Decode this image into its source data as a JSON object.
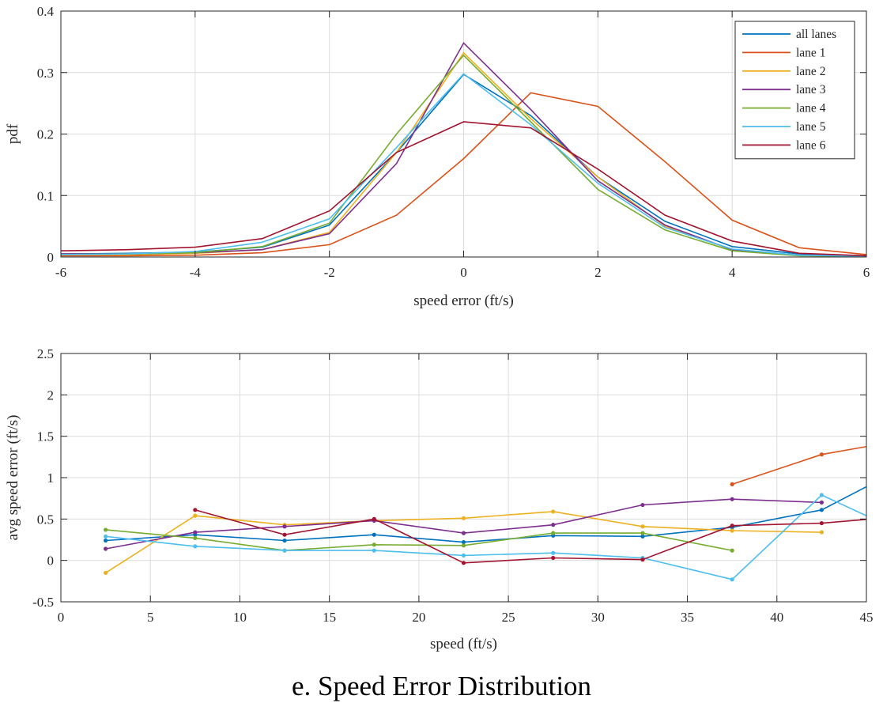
{
  "caption": "e. Speed Error Distribution",
  "colors": {
    "all lanes": "#0072BD",
    "lane 1": "#D95319",
    "lane 2": "#EDB120",
    "lane 3": "#7E2F8E",
    "lane 4": "#77AC30",
    "lane 5": "#4DBEEE",
    "lane 6": "#A2142F"
  },
  "chart_data": [
    {
      "type": "line",
      "xlabel": "speed error (ft/s)",
      "ylabel": "pdf",
      "xlim": [
        -6,
        6
      ],
      "ylim": [
        0,
        0.4
      ],
      "xticks": [
        "-6",
        "-4",
        "-2",
        "0",
        "2",
        "4",
        "6"
      ],
      "yticks": [
        "0",
        "0.1",
        "0.2",
        "0.3",
        "0.4"
      ],
      "grid": true,
      "legend": "top-right",
      "x": [
        -6,
        -5,
        -4,
        -3,
        -2,
        -1,
        0,
        1,
        2,
        3,
        4,
        5,
        6
      ],
      "series": [
        {
          "name": "all lanes",
          "values": [
            0.005,
            0.006,
            0.008,
            0.016,
            0.052,
            0.17,
            0.297,
            0.23,
            0.13,
            0.058,
            0.017,
            0.005,
            0.002
          ]
        },
        {
          "name": "lane 1",
          "values": [
            0.002,
            0.002,
            0.003,
            0.007,
            0.02,
            0.068,
            0.16,
            0.267,
            0.245,
            0.155,
            0.06,
            0.015,
            0.004
          ]
        },
        {
          "name": "lane 2",
          "values": [
            0.004,
            0.004,
            0.006,
            0.012,
            0.04,
            0.17,
            0.332,
            0.225,
            0.13,
            0.05,
            0.012,
            0.003,
            0.001
          ]
        },
        {
          "name": "lane 3",
          "values": [
            0.005,
            0.005,
            0.007,
            0.012,
            0.038,
            0.152,
            0.348,
            0.24,
            0.124,
            0.052,
            0.012,
            0.003,
            0.001
          ]
        },
        {
          "name": "lane 4",
          "values": [
            0.004,
            0.005,
            0.007,
            0.017,
            0.055,
            0.2,
            0.328,
            0.22,
            0.11,
            0.044,
            0.01,
            0.002,
            0.001
          ]
        },
        {
          "name": "lane 5",
          "values": [
            0.004,
            0.005,
            0.009,
            0.024,
            0.062,
            0.178,
            0.298,
            0.215,
            0.12,
            0.048,
            0.013,
            0.003,
            0.001
          ]
        },
        {
          "name": "lane 6",
          "values": [
            0.01,
            0.012,
            0.016,
            0.03,
            0.075,
            0.17,
            0.22,
            0.21,
            0.143,
            0.068,
            0.026,
            0.006,
            0.002
          ]
        }
      ]
    },
    {
      "type": "line",
      "xlabel": "speed (ft/s)",
      "ylabel": "avg speed error (ft/s)",
      "xlim": [
        0,
        45
      ],
      "ylim": [
        -0.5,
        2.5
      ],
      "xticks": [
        "0",
        "5",
        "10",
        "15",
        "20",
        "25",
        "30",
        "35",
        "40",
        "45"
      ],
      "yticks": [
        "-0.5",
        "0",
        "0.5",
        "1",
        "1.5",
        "2",
        "2.5"
      ],
      "grid": true,
      "x": [
        2.5,
        7.5,
        12.5,
        17.5,
        22.5,
        27.5,
        32.5,
        37.5,
        42.5,
        47.5
      ],
      "series": [
        {
          "name": "all lanes",
          "values": [
            0.24,
            0.31,
            0.24,
            0.31,
            0.22,
            0.3,
            0.29,
            0.4,
            0.61,
            1.17
          ]
        },
        {
          "name": "lane 1",
          "values": [
            null,
            null,
            null,
            null,
            null,
            null,
            null,
            0.92,
            1.28,
            1.47
          ]
        },
        {
          "name": "lane 2",
          "values": [
            -0.15,
            0.54,
            0.43,
            0.48,
            0.51,
            0.59,
            0.41,
            0.36,
            0.34,
            null
          ]
        },
        {
          "name": "lane 3",
          "values": [
            0.14,
            0.34,
            0.41,
            0.48,
            0.33,
            0.43,
            0.67,
            0.74,
            0.7,
            null
          ]
        },
        {
          "name": "lane 4",
          "values": [
            0.37,
            0.27,
            0.12,
            0.19,
            0.18,
            0.33,
            0.33,
            0.12,
            null,
            null
          ]
        },
        {
          "name": "lane 5",
          "values": [
            0.29,
            0.17,
            0.12,
            0.12,
            0.06,
            0.09,
            0.03,
            -0.23,
            0.79,
            0.29
          ]
        },
        {
          "name": "lane 6",
          "values": [
            null,
            0.61,
            0.31,
            0.5,
            -0.03,
            0.03,
            0.01,
            0.42,
            0.45,
            0.54
          ]
        }
      ]
    }
  ]
}
